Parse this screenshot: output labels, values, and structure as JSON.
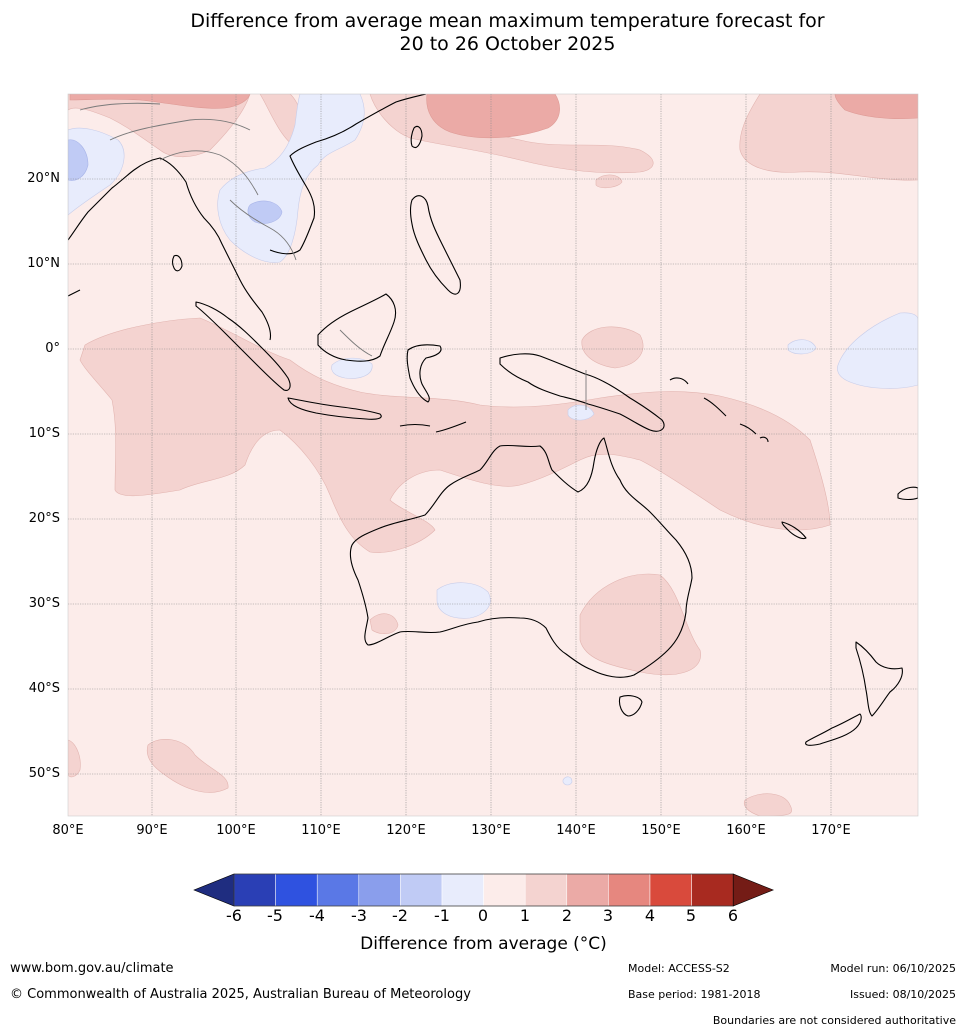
{
  "title": {
    "line1": "Difference from average mean maximum temperature forecast for",
    "line2": "20 to 26 October 2025"
  },
  "map": {
    "lat_labels": [
      "20°N",
      "10°N",
      "0°",
      "10°S",
      "20°S",
      "30°S",
      "40°S",
      "50°S"
    ],
    "lon_labels": [
      "80°E",
      "90°E",
      "100°E",
      "110°E",
      "120°E",
      "130°E",
      "140°E",
      "150°E",
      "160°E",
      "170°E"
    ]
  },
  "colorbar": {
    "ticks": [
      "-6",
      "-5",
      "-4",
      "-3",
      "-2",
      "-1",
      "0",
      "1",
      "2",
      "3",
      "4",
      "5",
      "6"
    ],
    "colors": [
      "#1f2d80",
      "#2a3fb5",
      "#2f52e0",
      "#5a78e6",
      "#8a9eec",
      "#c0cbf5",
      "#e8ecfc",
      "#fcecea",
      "#f4d3d0",
      "#ebaaa6",
      "#e6877f",
      "#d94a3c",
      "#a82a20",
      "#741c16"
    ],
    "title": "Difference from average (°C)"
  },
  "footer": {
    "website": "www.bom.gov.au/climate",
    "copyright": "© Commonwealth of Australia 2025, Australian Bureau of Meteorology",
    "model": "Model: ACCESS-S2",
    "base_period": "Base period: 1981-2018",
    "model_run": "Model run: 06/10/2025",
    "issued": "Issued: 08/10/2025",
    "disclaimer": "Boundaries are not considered authoritative"
  }
}
